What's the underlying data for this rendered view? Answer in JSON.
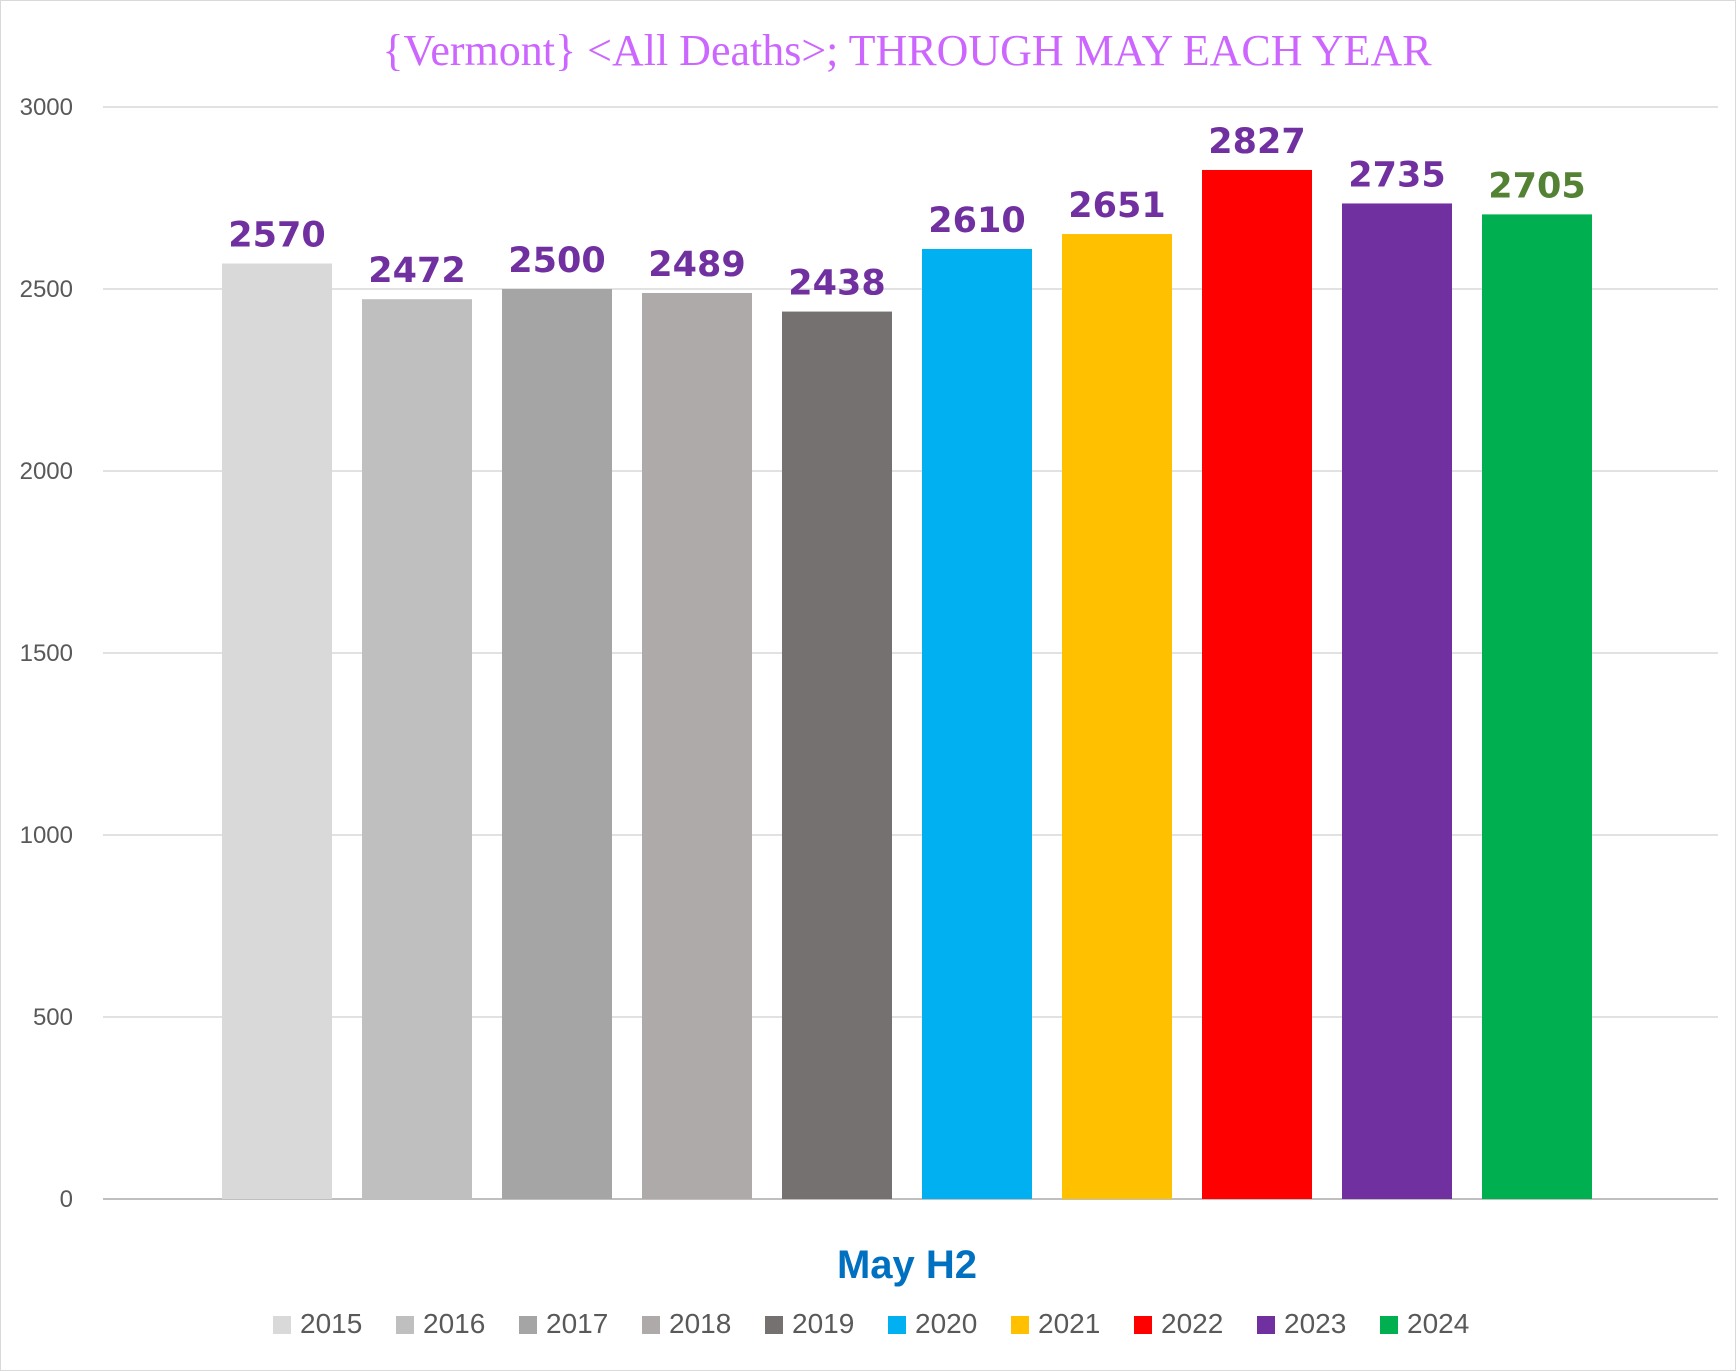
{
  "chart_data": {
    "type": "bar",
    "title": "{Vermont}  <All Deaths>; THROUGH MAY EACH YEAR",
    "xlabel": "May H2",
    "ylabel": "",
    "ylim": [
      0,
      3000
    ],
    "yticks": [
      "0",
      "500",
      "1000",
      "1500",
      "2000",
      "2500",
      "3000"
    ],
    "grid": true,
    "legend_position": "bottom",
    "categories": [
      "May H2"
    ],
    "series": [
      {
        "name": "2015",
        "values": [
          2570
        ],
        "color": "#d9d9d9",
        "label_color": "#7030a0"
      },
      {
        "name": "2016",
        "values": [
          2472
        ],
        "color": "#bfbfbf",
        "label_color": "#7030a0"
      },
      {
        "name": "2017",
        "values": [
          2500
        ],
        "color": "#a5a5a5",
        "label_color": "#7030a0"
      },
      {
        "name": "2018",
        "values": [
          2489
        ],
        "color": "#aeaaaa",
        "label_color": "#7030a0"
      },
      {
        "name": "2019",
        "values": [
          2438
        ],
        "color": "#767171",
        "label_color": "#7030a0"
      },
      {
        "name": "2020",
        "values": [
          2610
        ],
        "color": "#00b0f0",
        "label_color": "#7030a0"
      },
      {
        "name": "2021",
        "values": [
          2651
        ],
        "color": "#ffc000",
        "label_color": "#7030a0"
      },
      {
        "name": "2022",
        "values": [
          2827
        ],
        "color": "#ff0000",
        "label_color": "#7030a0"
      },
      {
        "name": "2023",
        "values": [
          2735
        ],
        "color": "#7030a0",
        "label_color": "#7030a0"
      },
      {
        "name": "2024",
        "values": [
          2705
        ],
        "color": "#00b050",
        "label_color": "#548235"
      }
    ],
    "colors": {
      "title": "#cc66ff",
      "xlabel": "#0070c0",
      "gridline": "#d9d9d9",
      "axis": "#bfbfbf"
    }
  }
}
